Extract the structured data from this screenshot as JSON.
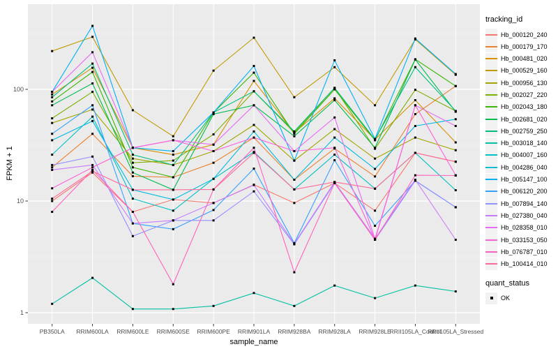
{
  "figure": {
    "background": "#FFFFFF",
    "panel_bg": "#EBEBEB",
    "grid_major": "#FFFFFF",
    "grid_minor": "#F4F4F4",
    "tick_color": "#333333",
    "tick_text_color": "#4D4D4D",
    "point_color": "#000000"
  },
  "legend": {
    "tracking_title": "tracking_id",
    "quant_title": "quant_status",
    "quant_items": [
      {
        "label": "OK",
        "symbol": "square",
        "color": "#000000"
      }
    ]
  },
  "chart_data": {
    "type": "line",
    "title": "",
    "xlabel": "sample_name",
    "ylabel": "FPKM + 1",
    "y_scale": "log10",
    "y_ticks": [
      1,
      10,
      100
    ],
    "ylim": [
      1,
      580
    ],
    "grid": true,
    "legend_position": "right",
    "point_marker": {
      "shape": "square",
      "color": "#000000",
      "label": "OK"
    },
    "x": [
      "PB350LA",
      "RRIM600LA",
      "RRIM600LE",
      "RRIM600SE",
      "RRIM600PE",
      "RRIM901LA",
      "RRIM928BA",
      "RRIM928LA",
      "RRIM928LE",
      "RRII105LA_Control",
      "RRII105LA_Stressed"
    ],
    "series": [
      {
        "name": "Hb_000120_240",
        "color": "#F8766D",
        "values": [
          10,
          18,
          8,
          10.3,
          9.6,
          14,
          9.6,
          14.5,
          8.2,
          27,
          22.5
        ]
      },
      {
        "name": "Hb_000179_170",
        "color": "#EA8331",
        "values": [
          20,
          40,
          16.7,
          16.3,
          22,
          37,
          15.5,
          29.5,
          16.6,
          60,
          107
        ]
      },
      {
        "name": "Hb_000481_020",
        "color": "#D89000",
        "values": [
          90,
          156,
          30,
          26,
          32,
          119,
          41,
          83,
          35.6,
          80,
          33.5
        ]
      },
      {
        "name": "Hb_000529_160",
        "color": "#C09B00",
        "values": [
          220,
          295,
          65,
          38,
          147,
          290,
          85,
          158,
          72,
          280,
          135
        ]
      },
      {
        "name": "Hb_000956_130",
        "color": "#A3A500",
        "values": [
          50,
          66,
          24,
          21,
          28,
          48,
          23,
          44,
          24,
          37,
          28.5
        ]
      },
      {
        "name": "Hb_002027_220",
        "color": "#7CAE00",
        "values": [
          55,
          95,
          22,
          23,
          39.5,
          96,
          41,
          103,
          29.4,
          99,
          64
        ]
      },
      {
        "name": "Hb_002043_180",
        "color": "#39B600",
        "values": [
          78,
          143,
          20,
          16.3,
          62,
          141,
          40,
          100,
          35,
          186,
          107
        ]
      },
      {
        "name": "Hb_002681_020",
        "color": "#00BB4E",
        "values": [
          72,
          113,
          18,
          12.6,
          60,
          72,
          38,
          80,
          30,
          185,
          63
        ]
      },
      {
        "name": "Hb_002759_250",
        "color": "#00BF7D",
        "values": [
          85,
          170,
          26,
          21,
          62,
          96,
          42,
          103,
          35.6,
          158,
          64
        ]
      },
      {
        "name": "Hb_003018_140",
        "color": "#00C1A3",
        "values": [
          1.2,
          2.05,
          1.08,
          1.08,
          1.15,
          1.5,
          1.15,
          1.75,
          1.35,
          1.75,
          1.55
        ]
      },
      {
        "name": "Hb_004007_160",
        "color": "#00BFC4",
        "values": [
          26,
          57,
          10.5,
          8.2,
          15.8,
          27.5,
          12.7,
          26,
          12.9,
          27,
          12.5
        ]
      },
      {
        "name": "Hb_004286_040",
        "color": "#00BAE0",
        "values": [
          35,
          52,
          12.6,
          10.3,
          15.8,
          42,
          15.5,
          37,
          19.4,
          47,
          54
        ]
      },
      {
        "name": "Hb_005147_100",
        "color": "#00B0F6",
        "values": [
          95,
          370,
          30,
          28,
          62,
          162,
          23,
          182,
          36,
          285,
          137
        ]
      },
      {
        "name": "Hb_006120_200",
        "color": "#35A2FF",
        "values": [
          40,
          72,
          6.3,
          5.6,
          8.3,
          19.5,
          4.2,
          23.2,
          6,
          15.2,
          8.8
        ]
      },
      {
        "name": "Hb_007894_140",
        "color": "#9590FF",
        "values": [
          21,
          25,
          4.85,
          6.7,
          6.7,
          12.2,
          4.1,
          14.5,
          4.5,
          15.2,
          8.8
        ]
      },
      {
        "name": "Hb_027380_040",
        "color": "#C77CFF",
        "values": [
          19,
          21,
          6.3,
          6.7,
          9.6,
          13.9,
          4.15,
          14.8,
          4.6,
          15.5,
          4.5
        ]
      },
      {
        "name": "Hb_028358_010",
        "color": "#E76BF3",
        "values": [
          95,
          215,
          30,
          35,
          32,
          72,
          28,
          56,
          4.6,
          72,
          47
        ]
      },
      {
        "name": "Hb_033153_050",
        "color": "#FA62DB",
        "values": [
          13,
          20,
          30,
          35,
          28,
          37,
          28,
          30,
          4.5,
          72,
          17
        ]
      },
      {
        "name": "Hb_076787_010",
        "color": "#FF62BC",
        "values": [
          8,
          19,
          8,
          1.8,
          12.7,
          30,
          2.3,
          14.5,
          4.5,
          17,
          16.9
        ]
      },
      {
        "name": "Hb_100414_010",
        "color": "#FF6A98",
        "values": [
          10.5,
          18.5,
          12.6,
          12.6,
          12.7,
          27,
          12.7,
          14.8,
          12.9,
          27,
          22.5
        ]
      }
    ]
  }
}
